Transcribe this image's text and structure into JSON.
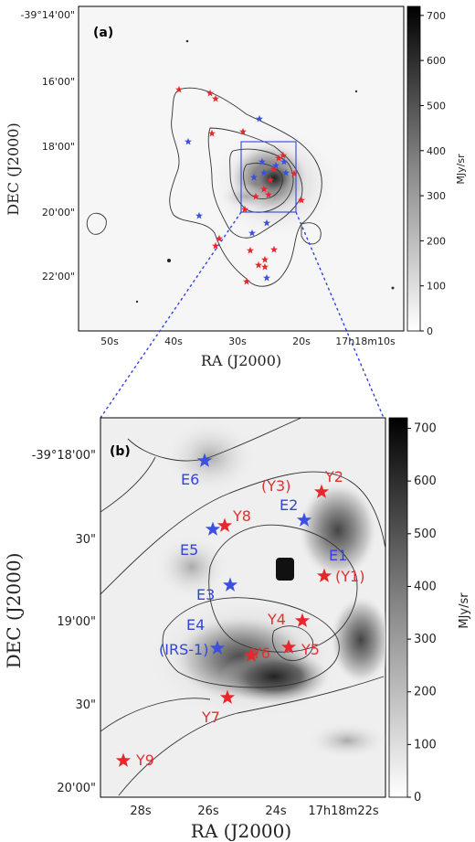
{
  "colors": {
    "red_star": "#e8262b",
    "blue_star": "#3b4fe0",
    "zoom_box": "#3344dd",
    "contour": "#333333"
  },
  "colorbar": {
    "label": "MJy/sr",
    "ticks": [
      "0",
      "100",
      "200",
      "300",
      "400",
      "500",
      "600",
      "700"
    ]
  },
  "chart_data": [
    {
      "type": "image",
      "panel_label": "(a)",
      "xlabel": "RA (J2000)",
      "ylabel": "DEC (J2000)",
      "x_ticks": [
        "50s",
        "40s",
        "30s",
        "20s",
        "17h18m10s"
      ],
      "y_ticks": [
        "-39°14'00\"",
        "16'00\"",
        "18'00\"",
        "20'00\"",
        "22'00\""
      ],
      "colorbar_range": [
        0,
        700
      ],
      "colorbar_unit": "MJy/sr",
      "marker_count": {
        "red": 23,
        "blue": 12
      }
    },
    {
      "type": "image",
      "panel_label": "(b)",
      "xlabel": "RA (J2000)",
      "ylabel": "DEC (J2000)",
      "x_ticks": [
        "28s",
        "26s",
        "24s",
        "17h18m22s"
      ],
      "y_ticks": [
        "-39°18'00\"",
        "30\"",
        "19'00\"",
        "30\"",
        "20'00\""
      ],
      "colorbar_range": [
        0,
        700
      ],
      "colorbar_unit": "MJy/sr",
      "sources": {
        "red": [
          "Y2",
          "(Y3)",
          "Y8",
          "(Y1)",
          "Y4",
          "Y5",
          "Y6",
          "Y7",
          "Y9"
        ],
        "blue": [
          "E6",
          "E2",
          "E5",
          "E1",
          "E3",
          "E4",
          "(IRS-1)"
        ]
      }
    }
  ],
  "labels": {
    "a": {
      "panel": "(a)",
      "xlabel": "RA (J2000)",
      "ylabel": "DEC (J2000)",
      "xticks": [
        "50s",
        "40s",
        "30s",
        "20s",
        "17h18m10s"
      ],
      "yticks": [
        "-39°14'00\"",
        "16'00\"",
        "18'00\"",
        "20'00\"",
        "22'00\""
      ]
    },
    "b": {
      "panel": "(b)",
      "xlabel": "RA (J2000)",
      "ylabel": "DEC (J2000)",
      "xticks": [
        "28s",
        "26s",
        "24s",
        "17h18m22s"
      ],
      "yticks": [
        "-39°18'00\"",
        "30\"",
        "19'00\"",
        "30\"",
        "20'00\""
      ],
      "red": {
        "Y2": "Y2",
        "Y3": "(Y3)",
        "Y8": "Y8",
        "Y1": "(Y1)",
        "Y4": "Y4",
        "Y5": "Y5",
        "Y6": "Y6",
        "Y7": "Y7",
        "Y9": "Y9"
      },
      "blue": {
        "E6": "E6",
        "E2": "E2",
        "E5": "E5",
        "E1": "E1",
        "E3": "E3",
        "E4": "E4",
        "IRS1": "(IRS-1)"
      }
    }
  }
}
